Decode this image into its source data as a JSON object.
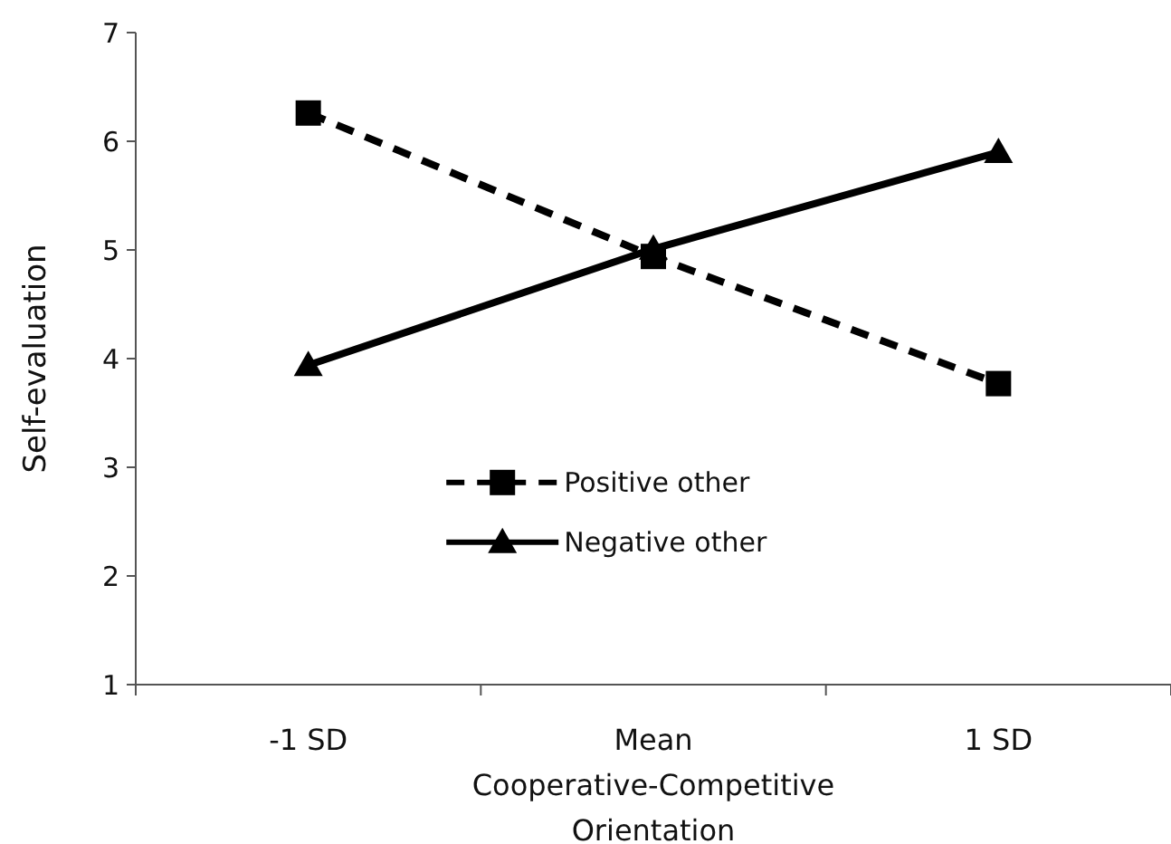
{
  "chart_data": {
    "type": "line",
    "ylabel": "Self-evaluation",
    "categories": [
      "-1 SD",
      "Mean Cooperative-Competitive Orientation",
      "1 SD"
    ],
    "series": [
      {
        "name": "Positive other",
        "color": "#000000",
        "values": [
          6.26,
          4.94,
          3.77
        ],
        "marker": "square",
        "line_style": "dashed"
      },
      {
        "name": "Negative other",
        "color": "#000000",
        "values": [
          3.94,
          5.01,
          5.9
        ],
        "marker": "triangle",
        "line_style": "solid"
      }
    ],
    "ylim": [
      1,
      7
    ],
    "yticks": [
      1,
      2,
      3,
      4,
      5,
      6,
      7
    ],
    "grid": false,
    "legend": "bottom"
  }
}
